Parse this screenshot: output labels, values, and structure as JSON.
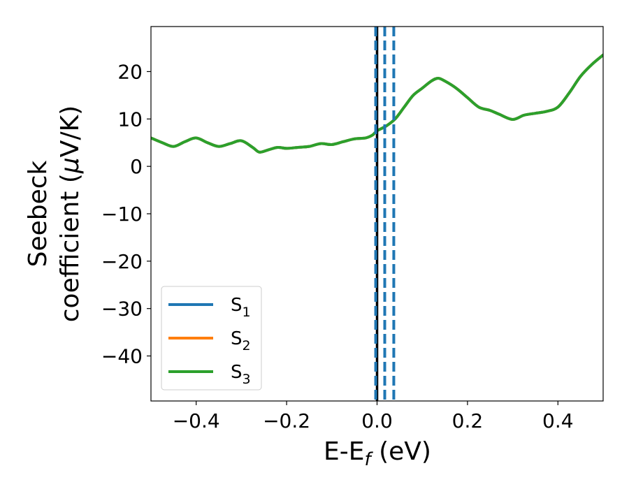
{
  "chart_data": {
    "type": "line",
    "title": "",
    "xlabel": {
      "main": "E-E",
      "sub": "f",
      "suffix": " (eV)"
    },
    "ylabel": {
      "line1": "Seebeck",
      "line2_pre": "coefficient  (",
      "line2_mu": "μ",
      "line2_post": "V/K)"
    },
    "xlim": [
      -0.5,
      0.5
    ],
    "ylim": [
      -49.5,
      29.5
    ],
    "xticks": [
      -0.4,
      -0.2,
      0.0,
      0.2,
      0.4
    ],
    "xtick_labels": [
      "−0.4",
      "−0.2",
      "0.0",
      "0.2",
      "0.4"
    ],
    "yticks": [
      20,
      10,
      0,
      -10,
      -20,
      -30,
      -40
    ],
    "ytick_labels": [
      "20",
      "10",
      "0",
      "−10",
      "−20",
      "−30",
      "−40"
    ],
    "grid": false,
    "legend": {
      "placement": "lower-left"
    },
    "series": [
      {
        "name": {
          "main": "S",
          "sub": "1"
        },
        "color": "#1f77b4",
        "x": [
          -0.5,
          -0.475,
          -0.45,
          -0.425,
          -0.4,
          -0.375,
          -0.35,
          -0.325,
          -0.3,
          -0.275,
          -0.26,
          -0.24,
          -0.22,
          -0.2,
          -0.175,
          -0.15,
          -0.125,
          -0.1,
          -0.075,
          -0.05,
          -0.025,
          -0.01,
          0.0,
          0.02,
          0.04,
          0.06,
          0.08,
          0.1,
          0.12,
          0.135,
          0.15,
          0.175,
          0.2,
          0.225,
          0.25,
          0.27,
          0.3,
          0.325,
          0.35,
          0.375,
          0.4,
          0.425,
          0.45,
          0.475,
          0.5
        ],
        "y": [
          6.0,
          5.0,
          4.2,
          5.2,
          6.0,
          5.0,
          4.2,
          4.8,
          5.4,
          4.0,
          3.0,
          3.5,
          4.0,
          3.8,
          4.0,
          4.2,
          4.8,
          4.6,
          5.2,
          5.8,
          6.0,
          6.6,
          7.5,
          8.5,
          10.0,
          12.5,
          15.0,
          16.5,
          18.0,
          18.6,
          18.0,
          16.5,
          14.5,
          12.5,
          11.8,
          11.0,
          9.9,
          10.8,
          11.2,
          11.6,
          12.5,
          15.5,
          19.0,
          21.5,
          23.5
        ]
      },
      {
        "name": {
          "main": "S",
          "sub": "2"
        },
        "color": "#ff7f0e",
        "x": [
          -0.5,
          -0.475,
          -0.45,
          -0.425,
          -0.4,
          -0.375,
          -0.35,
          -0.325,
          -0.3,
          -0.275,
          -0.26,
          -0.24,
          -0.22,
          -0.2,
          -0.175,
          -0.15,
          -0.125,
          -0.1,
          -0.075,
          -0.05,
          -0.025,
          -0.01,
          0.0,
          0.02,
          0.04,
          0.06,
          0.08,
          0.1,
          0.12,
          0.135,
          0.15,
          0.175,
          0.2,
          0.225,
          0.25,
          0.27,
          0.3,
          0.325,
          0.35,
          0.375,
          0.4,
          0.425,
          0.45,
          0.475,
          0.5
        ],
        "y": [
          6.0,
          5.0,
          4.2,
          5.2,
          6.0,
          5.0,
          4.2,
          4.8,
          5.4,
          4.0,
          3.0,
          3.5,
          4.0,
          3.8,
          4.0,
          4.2,
          4.8,
          4.6,
          5.2,
          5.8,
          6.0,
          6.6,
          7.5,
          8.5,
          10.0,
          12.5,
          15.0,
          16.5,
          18.0,
          18.6,
          18.0,
          16.5,
          14.5,
          12.5,
          11.8,
          11.0,
          9.9,
          10.8,
          11.2,
          11.6,
          12.5,
          15.5,
          19.0,
          21.5,
          23.5
        ]
      },
      {
        "name": {
          "main": "S",
          "sub": "3"
        },
        "color": "#2ca02c",
        "x": [
          -0.5,
          -0.475,
          -0.45,
          -0.425,
          -0.4,
          -0.375,
          -0.35,
          -0.325,
          -0.3,
          -0.275,
          -0.26,
          -0.24,
          -0.22,
          -0.2,
          -0.175,
          -0.15,
          -0.125,
          -0.1,
          -0.075,
          -0.05,
          -0.025,
          -0.01,
          0.0,
          0.02,
          0.04,
          0.06,
          0.08,
          0.1,
          0.12,
          0.135,
          0.15,
          0.175,
          0.2,
          0.225,
          0.25,
          0.27,
          0.3,
          0.325,
          0.35,
          0.375,
          0.4,
          0.425,
          0.45,
          0.475,
          0.5
        ],
        "y": [
          6.0,
          5.0,
          4.2,
          5.2,
          6.0,
          5.0,
          4.2,
          4.8,
          5.4,
          4.0,
          3.0,
          3.5,
          4.0,
          3.8,
          4.0,
          4.2,
          4.8,
          4.6,
          5.2,
          5.8,
          6.0,
          6.6,
          7.5,
          8.5,
          10.0,
          12.5,
          15.0,
          16.5,
          18.0,
          18.6,
          18.0,
          16.5,
          14.5,
          12.5,
          11.8,
          11.0,
          9.9,
          10.8,
          11.2,
          11.6,
          12.5,
          15.5,
          19.0,
          21.5,
          23.5
        ]
      }
    ],
    "vlines": [
      {
        "x": 0.0,
        "color": "#000000",
        "style": "solid"
      },
      {
        "x": -0.003,
        "color": "#1f77b4",
        "style": "dashed"
      },
      {
        "x": 0.017,
        "color": "#1f77b4",
        "style": "dashed"
      },
      {
        "x": 0.037,
        "color": "#1f77b4",
        "style": "dashed"
      }
    ]
  }
}
